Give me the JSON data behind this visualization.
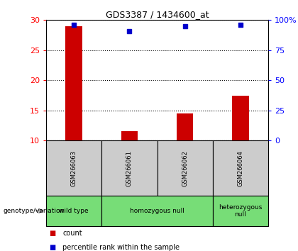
{
  "title": "GDS3387 / 1434600_at",
  "samples": [
    "GSM266063",
    "GSM266061",
    "GSM266062",
    "GSM266064"
  ],
  "counts": [
    29.0,
    11.5,
    14.5,
    17.5
  ],
  "percentiles": [
    96,
    91,
    95,
    96
  ],
  "ylim": [
    10,
    30
  ],
  "yticks_left": [
    10,
    15,
    20,
    25,
    30
  ],
  "yticks_right": [
    0,
    25,
    50,
    75,
    100
  ],
  "bar_color": "#cc0000",
  "scatter_color": "#0000cc",
  "groups": [
    {
      "label": "wild type",
      "start": 0,
      "end": 0,
      "color": "#77dd77"
    },
    {
      "label": "homozygous null",
      "start": 1,
      "end": 2,
      "color": "#77dd77"
    },
    {
      "label": "heterozygous\nnull",
      "start": 3,
      "end": 3,
      "color": "#77dd77"
    }
  ],
  "sample_box_color": "#cccccc",
  "legend_count_label": "count",
  "legend_percentile_label": "percentile rank within the sample",
  "genotype_label": "genotype/variation"
}
